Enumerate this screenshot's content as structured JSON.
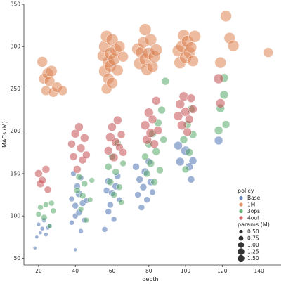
{
  "chart_data": {
    "type": "scatter",
    "xlabel": "depth",
    "ylabel": "MACs (M)",
    "xlim": [
      12,
      152
    ],
    "ylim": [
      42,
      350
    ],
    "xticks": [
      20,
      40,
      60,
      80,
      100,
      120,
      140
    ],
    "yticks": [
      50,
      100,
      150,
      200,
      250,
      300,
      350
    ],
    "legend": {
      "position": "lower-right",
      "hue_title": "policy",
      "size_title": "params (M)",
      "size_values": [
        0.5,
        0.75,
        1.0,
        1.25,
        1.5
      ]
    },
    "series": [
      {
        "name": "Base",
        "color": "#4c72b0",
        "points": [
          [
            18,
            62,
            0.2
          ],
          [
            19,
            75,
            0.2
          ],
          [
            20,
            90,
            0.3
          ],
          [
            21,
            80,
            0.2
          ],
          [
            22,
            85,
            0.3
          ],
          [
            23,
            95,
            0.4
          ],
          [
            24,
            78,
            0.3
          ],
          [
            25,
            86,
            0.3
          ],
          [
            26,
            88,
            0.3
          ],
          [
            38,
            92,
            0.4
          ],
          [
            38,
            120,
            0.5
          ],
          [
            39,
            150,
            0.5
          ],
          [
            40,
            100,
            0.5
          ],
          [
            40,
            112,
            0.6
          ],
          [
            40,
            60,
            0.2
          ],
          [
            41,
            135,
            0.6
          ],
          [
            42,
            104,
            0.6
          ],
          [
            42,
            126,
            0.7
          ],
          [
            43,
            82,
            0.4
          ],
          [
            43,
            145,
            0.5
          ],
          [
            44,
            115,
            0.6
          ],
          [
            45,
            95,
            0.5
          ],
          [
            46,
            118,
            0.5
          ],
          [
            56,
            84,
            0.5
          ],
          [
            57,
            130,
            0.6
          ],
          [
            58,
            105,
            0.6
          ],
          [
            58,
            141,
            0.7
          ],
          [
            59,
            113,
            0.6
          ],
          [
            60,
            127,
            0.7
          ],
          [
            61,
            96,
            0.5
          ],
          [
            62,
            135,
            0.7
          ],
          [
            63,
            147,
            0.6
          ],
          [
            64,
            119,
            0.5
          ],
          [
            73,
            158,
            0.7
          ],
          [
            74,
            125,
            0.6
          ],
          [
            75,
            143,
            0.7
          ],
          [
            76,
            110,
            0.6
          ],
          [
            77,
            134,
            0.7
          ],
          [
            78,
            152,
            0.8
          ],
          [
            79,
            119,
            0.6
          ],
          [
            80,
            164,
            0.7
          ],
          [
            81,
            140,
            0.7
          ],
          [
            82,
            128,
            0.6
          ],
          [
            96,
            183,
            0.9
          ],
          [
            97,
            164,
            0.9
          ],
          [
            100,
            177,
            1.0
          ],
          [
            102,
            158,
            0.8
          ],
          [
            103,
            143,
            0.7
          ],
          [
            104,
            165,
            0.8
          ],
          [
            118,
            189,
            0.9
          ]
        ]
      },
      {
        "name": "1M",
        "color": "#dd8452",
        "points": [
          [
            22,
            282,
            1.2
          ],
          [
            23,
            262,
            1.2
          ],
          [
            24,
            248,
            1.1
          ],
          [
            25,
            268,
            1.3
          ],
          [
            26,
            259,
            1.2
          ],
          [
            27,
            271,
            1.3
          ],
          [
            28,
            246,
            1.1
          ],
          [
            30,
            252,
            1.2
          ],
          [
            33,
            248,
            1.1
          ],
          [
            55,
            289,
            1.3
          ],
          [
            56,
            271,
            1.4
          ],
          [
            56,
            300,
            1.4
          ],
          [
            57,
            250,
            1.2
          ],
          [
            57,
            312,
            1.4
          ],
          [
            58,
            282,
            1.4
          ],
          [
            58,
            262,
            1.3
          ],
          [
            59,
            292,
            1.4
          ],
          [
            59,
            277,
            1.4
          ],
          [
            60,
            257,
            1.3
          ],
          [
            60,
            308,
            1.4
          ],
          [
            61,
            285,
            1.4
          ],
          [
            62,
            296,
            1.4
          ],
          [
            63,
            272,
            1.3
          ],
          [
            64,
            300,
            1.3
          ],
          [
            66,
            288,
            1.2
          ],
          [
            74,
            297,
            1.4
          ],
          [
            75,
            280,
            1.4
          ],
          [
            76,
            293,
            1.4
          ],
          [
            77,
            305,
            1.3
          ],
          [
            78,
            285,
            1.4
          ],
          [
            78,
            320,
            1.4
          ],
          [
            79,
            273,
            1.4
          ],
          [
            80,
            292,
            1.4
          ],
          [
            81,
            308,
            1.4
          ],
          [
            82,
            276,
            1.3
          ],
          [
            83,
            288,
            1.4
          ],
          [
            84,
            296,
            1.4
          ],
          [
            96,
            295,
            1.4
          ],
          [
            97,
            281,
            1.4
          ],
          [
            98,
            300,
            1.4
          ],
          [
            99,
            313,
            1.4
          ],
          [
            100,
            287,
            1.4
          ],
          [
            101,
            306,
            1.4
          ],
          [
            102,
            293,
            1.4
          ],
          [
            103,
            299,
            1.3
          ],
          [
            104,
            283,
            1.3
          ],
          [
            105,
            312,
            1.4
          ],
          [
            119,
            281,
            1.3
          ],
          [
            122,
            336,
            1.3
          ],
          [
            124,
            310,
            1.3
          ],
          [
            126,
            301,
            1.3
          ],
          [
            145,
            293,
            1.1
          ]
        ]
      },
      {
        "name": "3ops",
        "color": "#55a868",
        "points": [
          [
            20,
            102,
            0.5
          ],
          [
            21,
            110,
            0.5
          ],
          [
            23,
            98,
            0.6
          ],
          [
            24,
            113,
            0.5
          ],
          [
            26,
            88,
            0.4
          ],
          [
            27,
            115,
            0.5
          ],
          [
            28,
            106,
            0.5
          ],
          [
            41,
            130,
            0.6
          ],
          [
            42,
            146,
            0.6
          ],
          [
            43,
            108,
            0.5
          ],
          [
            44,
            124,
            0.6
          ],
          [
            45,
            138,
            0.6
          ],
          [
            46,
            95,
            0.5
          ],
          [
            48,
            119,
            0.5
          ],
          [
            49,
            142,
            0.5
          ],
          [
            58,
            158,
            0.7
          ],
          [
            59,
            140,
            0.7
          ],
          [
            60,
            170,
            0.7
          ],
          [
            61,
            125,
            0.6
          ],
          [
            62,
            152,
            0.7
          ],
          [
            63,
            186,
            0.7
          ],
          [
            64,
            134,
            0.6
          ],
          [
            65,
            116,
            0.5
          ],
          [
            66,
            162,
            0.6
          ],
          [
            78,
            170,
            0.7
          ],
          [
            79,
            150,
            0.7
          ],
          [
            80,
            185,
            0.8
          ],
          [
            81,
            162,
            0.8
          ],
          [
            82,
            197,
            0.8
          ],
          [
            83,
            140,
            0.7
          ],
          [
            84,
            176,
            0.8
          ],
          [
            85,
            210,
            0.8
          ],
          [
            86,
            154,
            0.7
          ],
          [
            87,
            225,
            0.8
          ],
          [
            88,
            190,
            0.7
          ],
          [
            89,
            259,
            0.8
          ],
          [
            99,
            190,
            0.8
          ],
          [
            100,
            155,
            0.7
          ],
          [
            101,
            208,
            0.8
          ],
          [
            102,
            175,
            0.8
          ],
          [
            103,
            226,
            0.8
          ],
          [
            104,
            196,
            0.8
          ],
          [
            118,
            201,
            0.9
          ],
          [
            119,
            227,
            0.9
          ],
          [
            121,
            243,
            0.9
          ],
          [
            122,
            208,
            0.8
          ],
          [
            121,
            263,
            0.9
          ]
        ]
      },
      {
        "name": "4out",
        "color": "#c44e52",
        "points": [
          [
            20,
            150,
            0.8
          ],
          [
            21,
            138,
            0.8
          ],
          [
            22,
            142,
            0.8
          ],
          [
            24,
            155,
            0.8
          ],
          [
            25,
            131,
            0.7
          ],
          [
            38,
            185,
            0.8
          ],
          [
            39,
            170,
            0.8
          ],
          [
            40,
            197,
            0.9
          ],
          [
            41,
            155,
            0.8
          ],
          [
            42,
            205,
            0.9
          ],
          [
            43,
            180,
            0.9
          ],
          [
            44,
            166,
            0.8
          ],
          [
            45,
            192,
            0.9
          ],
          [
            46,
            172,
            0.8
          ],
          [
            58,
            177,
            0.9
          ],
          [
            59,
            193,
            1.0
          ],
          [
            60,
            205,
            0.9
          ],
          [
            61,
            169,
            0.9
          ],
          [
            62,
            187,
            0.9
          ],
          [
            63,
            213,
            0.9
          ],
          [
            64,
            181,
            0.8
          ],
          [
            65,
            196,
            0.8
          ],
          [
            66,
            175,
            0.8
          ],
          [
            78,
            207,
            1.0
          ],
          [
            79,
            190,
            1.0
          ],
          [
            80,
            222,
            1.0
          ],
          [
            81,
            198,
            1.0
          ],
          [
            82,
            214,
            0.9
          ],
          [
            83,
            185,
            0.9
          ],
          [
            84,
            236,
            0.9
          ],
          [
            85,
            201,
            0.9
          ],
          [
            96,
            218,
            1.0
          ],
          [
            97,
            232,
            1.0
          ],
          [
            98,
            207,
            1.0
          ],
          [
            99,
            241,
            1.0
          ],
          [
            100,
            223,
            1.0
          ],
          [
            101,
            199,
            0.9
          ],
          [
            102,
            214,
            0.9
          ],
          [
            103,
            239,
            0.9
          ],
          [
            104,
            226,
            0.9
          ],
          [
            118,
            262,
            1.1
          ],
          [
            119,
            233,
            1.0
          ]
        ]
      }
    ]
  }
}
